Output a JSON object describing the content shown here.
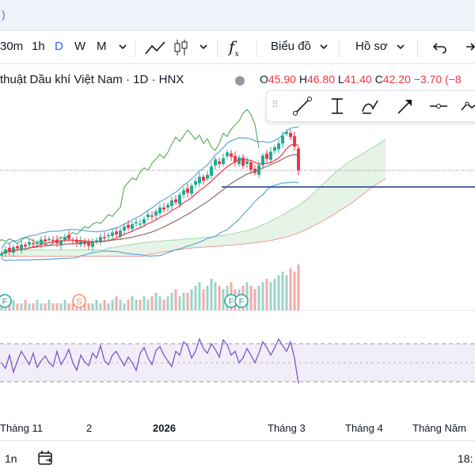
{
  "toolbar": {
    "intervals": [
      "30m",
      "1h",
      "D",
      "W",
      "M"
    ],
    "active_interval": "D",
    "chart_type_label": "Biểu đồ",
    "profile_label": "Hồ sơ"
  },
  "legend": {
    "title": "thuật Dầu khí Việt Nam · 1D · HNX",
    "open_key": "O",
    "open": "45.90",
    "high_key": "H",
    "high": "46.80",
    "low_key": "L",
    "low": "41.40",
    "close_key": "C",
    "close": "42.20",
    "change": "−3.70 (−8"
  },
  "drawing_tools": [
    "trend-line",
    "vertical-measure",
    "pattern-brush",
    "arrow-line",
    "horizontal-ray",
    "path"
  ],
  "colors": {
    "up": "#22ab94",
    "down": "#f23645",
    "rsi": "#7e57c2",
    "price_line": "#2a4a8c"
  },
  "events": [
    "F",
    "S",
    "F",
    "F"
  ],
  "time_axis": [
    {
      "label": "Tháng 11",
      "bold": false
    },
    {
      "label": "2",
      "bold": false
    },
    {
      "label": "2026",
      "bold": true
    },
    {
      "label": "Tháng 3",
      "bold": false
    },
    {
      "label": "Tháng 4",
      "bold": false
    },
    {
      "label": "Tháng Năm",
      "bold": false
    }
  ],
  "bottom": {
    "range_label": "1n",
    "time_right": "18:"
  },
  "chart_data": {
    "type": "line",
    "last_close": 42.2,
    "close_series": [
      29.2,
      29.8,
      29.5,
      30.2,
      30.0,
      30.6,
      30.3,
      31.0,
      30.7,
      30.9,
      31.4,
      31.1,
      31.5,
      31.2,
      30.8,
      31.3,
      31.8,
      31.5,
      31.2,
      30.9,
      31.2,
      30.7,
      30.4,
      30.9,
      31.3,
      31.8,
      31.6,
      32.1,
      32.5,
      32.2,
      32.8,
      33.4,
      33.2,
      33.8,
      34.1,
      33.9,
      34.6,
      35.3,
      35.0,
      35.8,
      36.4,
      36.1,
      36.8,
      37.5,
      37.2,
      38.4,
      39.1,
      38.7,
      39.8,
      40.5,
      41.2,
      40.6,
      41.5,
      42.8,
      43.9,
      43.2,
      44.1,
      45.0,
      44.3,
      43.5,
      44.2,
      42.9,
      43.6,
      42.3,
      41.8,
      43.0,
      44.5,
      44.0,
      45.1,
      45.8,
      46.4,
      47.6,
      48.2,
      47.4,
      45.9,
      42.2
    ],
    "volume": [
      2,
      3,
      2,
      3,
      2,
      2,
      3,
      2,
      2,
      3,
      2,
      2,
      3,
      2,
      2,
      2,
      3,
      2,
      2,
      3,
      2,
      3,
      2,
      2,
      3,
      2,
      3,
      2,
      3,
      4,
      3,
      2,
      3,
      4,
      3,
      3,
      4,
      3,
      4,
      5,
      4,
      3,
      4,
      5,
      6,
      4,
      5,
      5,
      6,
      7,
      8,
      6,
      7,
      9,
      8,
      7,
      6,
      7,
      8,
      6,
      6,
      7,
      8,
      7,
      6,
      7,
      8,
      9,
      8,
      9,
      10,
      11,
      10,
      12,
      11,
      13
    ],
    "rsi": [
      50,
      44,
      58,
      40,
      52,
      62,
      55,
      48,
      60,
      45,
      52,
      57,
      50,
      46,
      62,
      48,
      55,
      64,
      50,
      42,
      58,
      51,
      47,
      60,
      55,
      68,
      52,
      48,
      58,
      62,
      54,
      47,
      56,
      50,
      42,
      60,
      66,
      55,
      48,
      63,
      67,
      58,
      52,
      46,
      62,
      58,
      72,
      68,
      55,
      62,
      75,
      65,
      60,
      70,
      64,
      56,
      74,
      69,
      58,
      62,
      50,
      55,
      65,
      58,
      50,
      60,
      72,
      66,
      58,
      66,
      75,
      68,
      62,
      72,
      55,
      28
    ],
    "rsi_levels": [
      70,
      30
    ],
    "horizontal_line": 40.6
  }
}
